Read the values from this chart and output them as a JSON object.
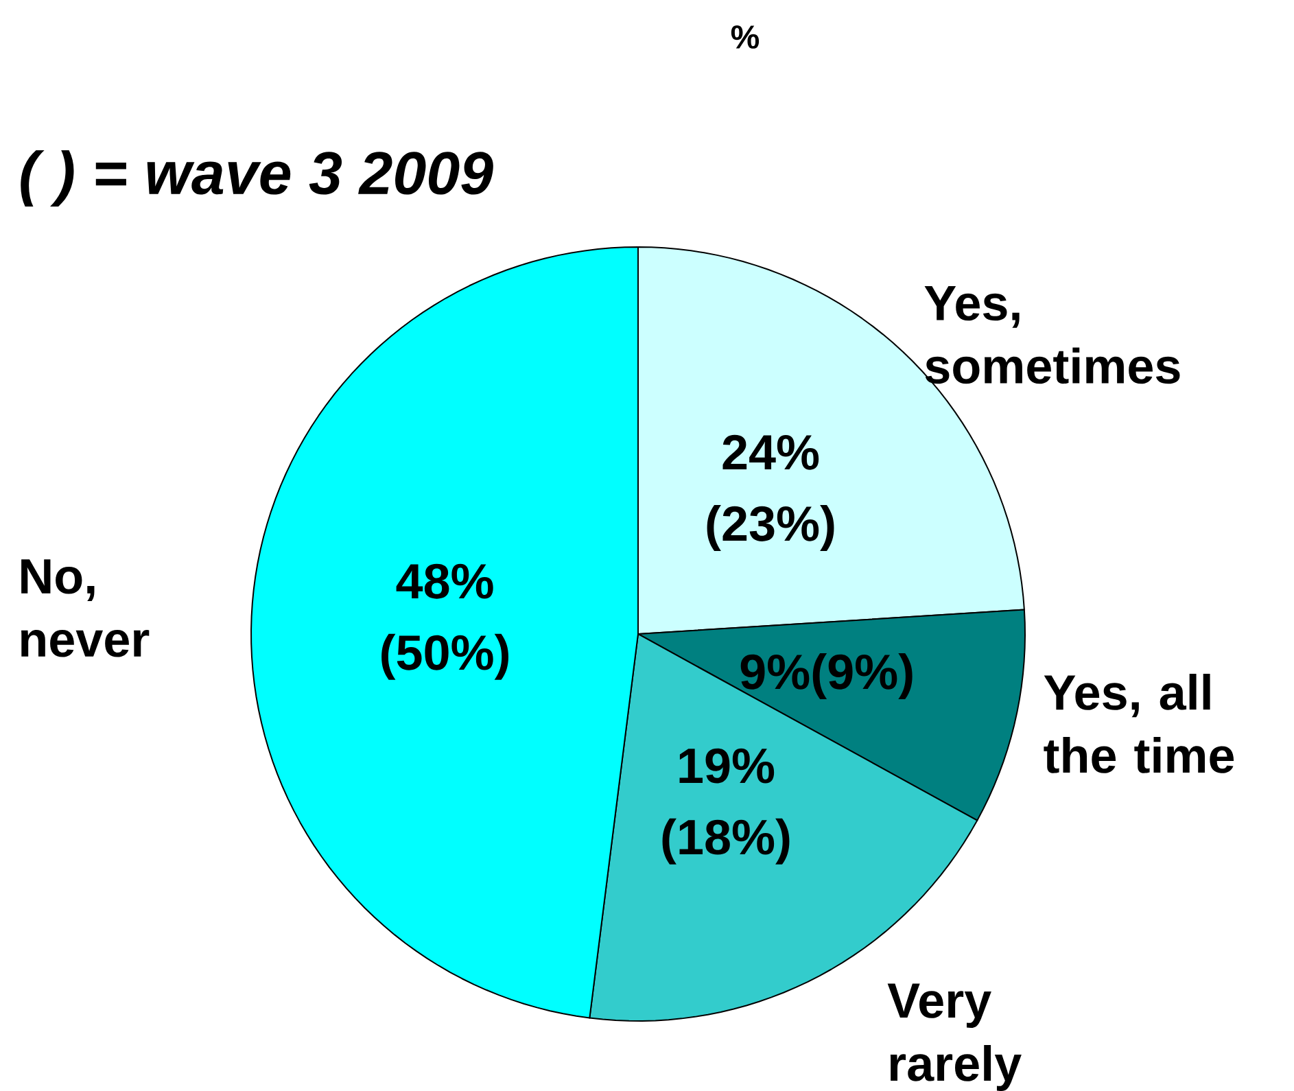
{
  "chart_data": {
    "type": "pie",
    "title": "%",
    "annotations": [
      "( ) = wave 3 2009"
    ],
    "categories": [
      "Yes, sometimes",
      "Yes, all the time",
      "Very rarely",
      "No, never"
    ],
    "values": [
      24,
      9,
      19,
      48
    ],
    "value_labels": [
      "24% (23%)",
      "9%(9%)",
      "19% (18%)",
      "48% (50%)"
    ],
    "colors": [
      "#ccffff",
      "#008080",
      "#33cccc",
      "#00ffff"
    ]
  }
}
